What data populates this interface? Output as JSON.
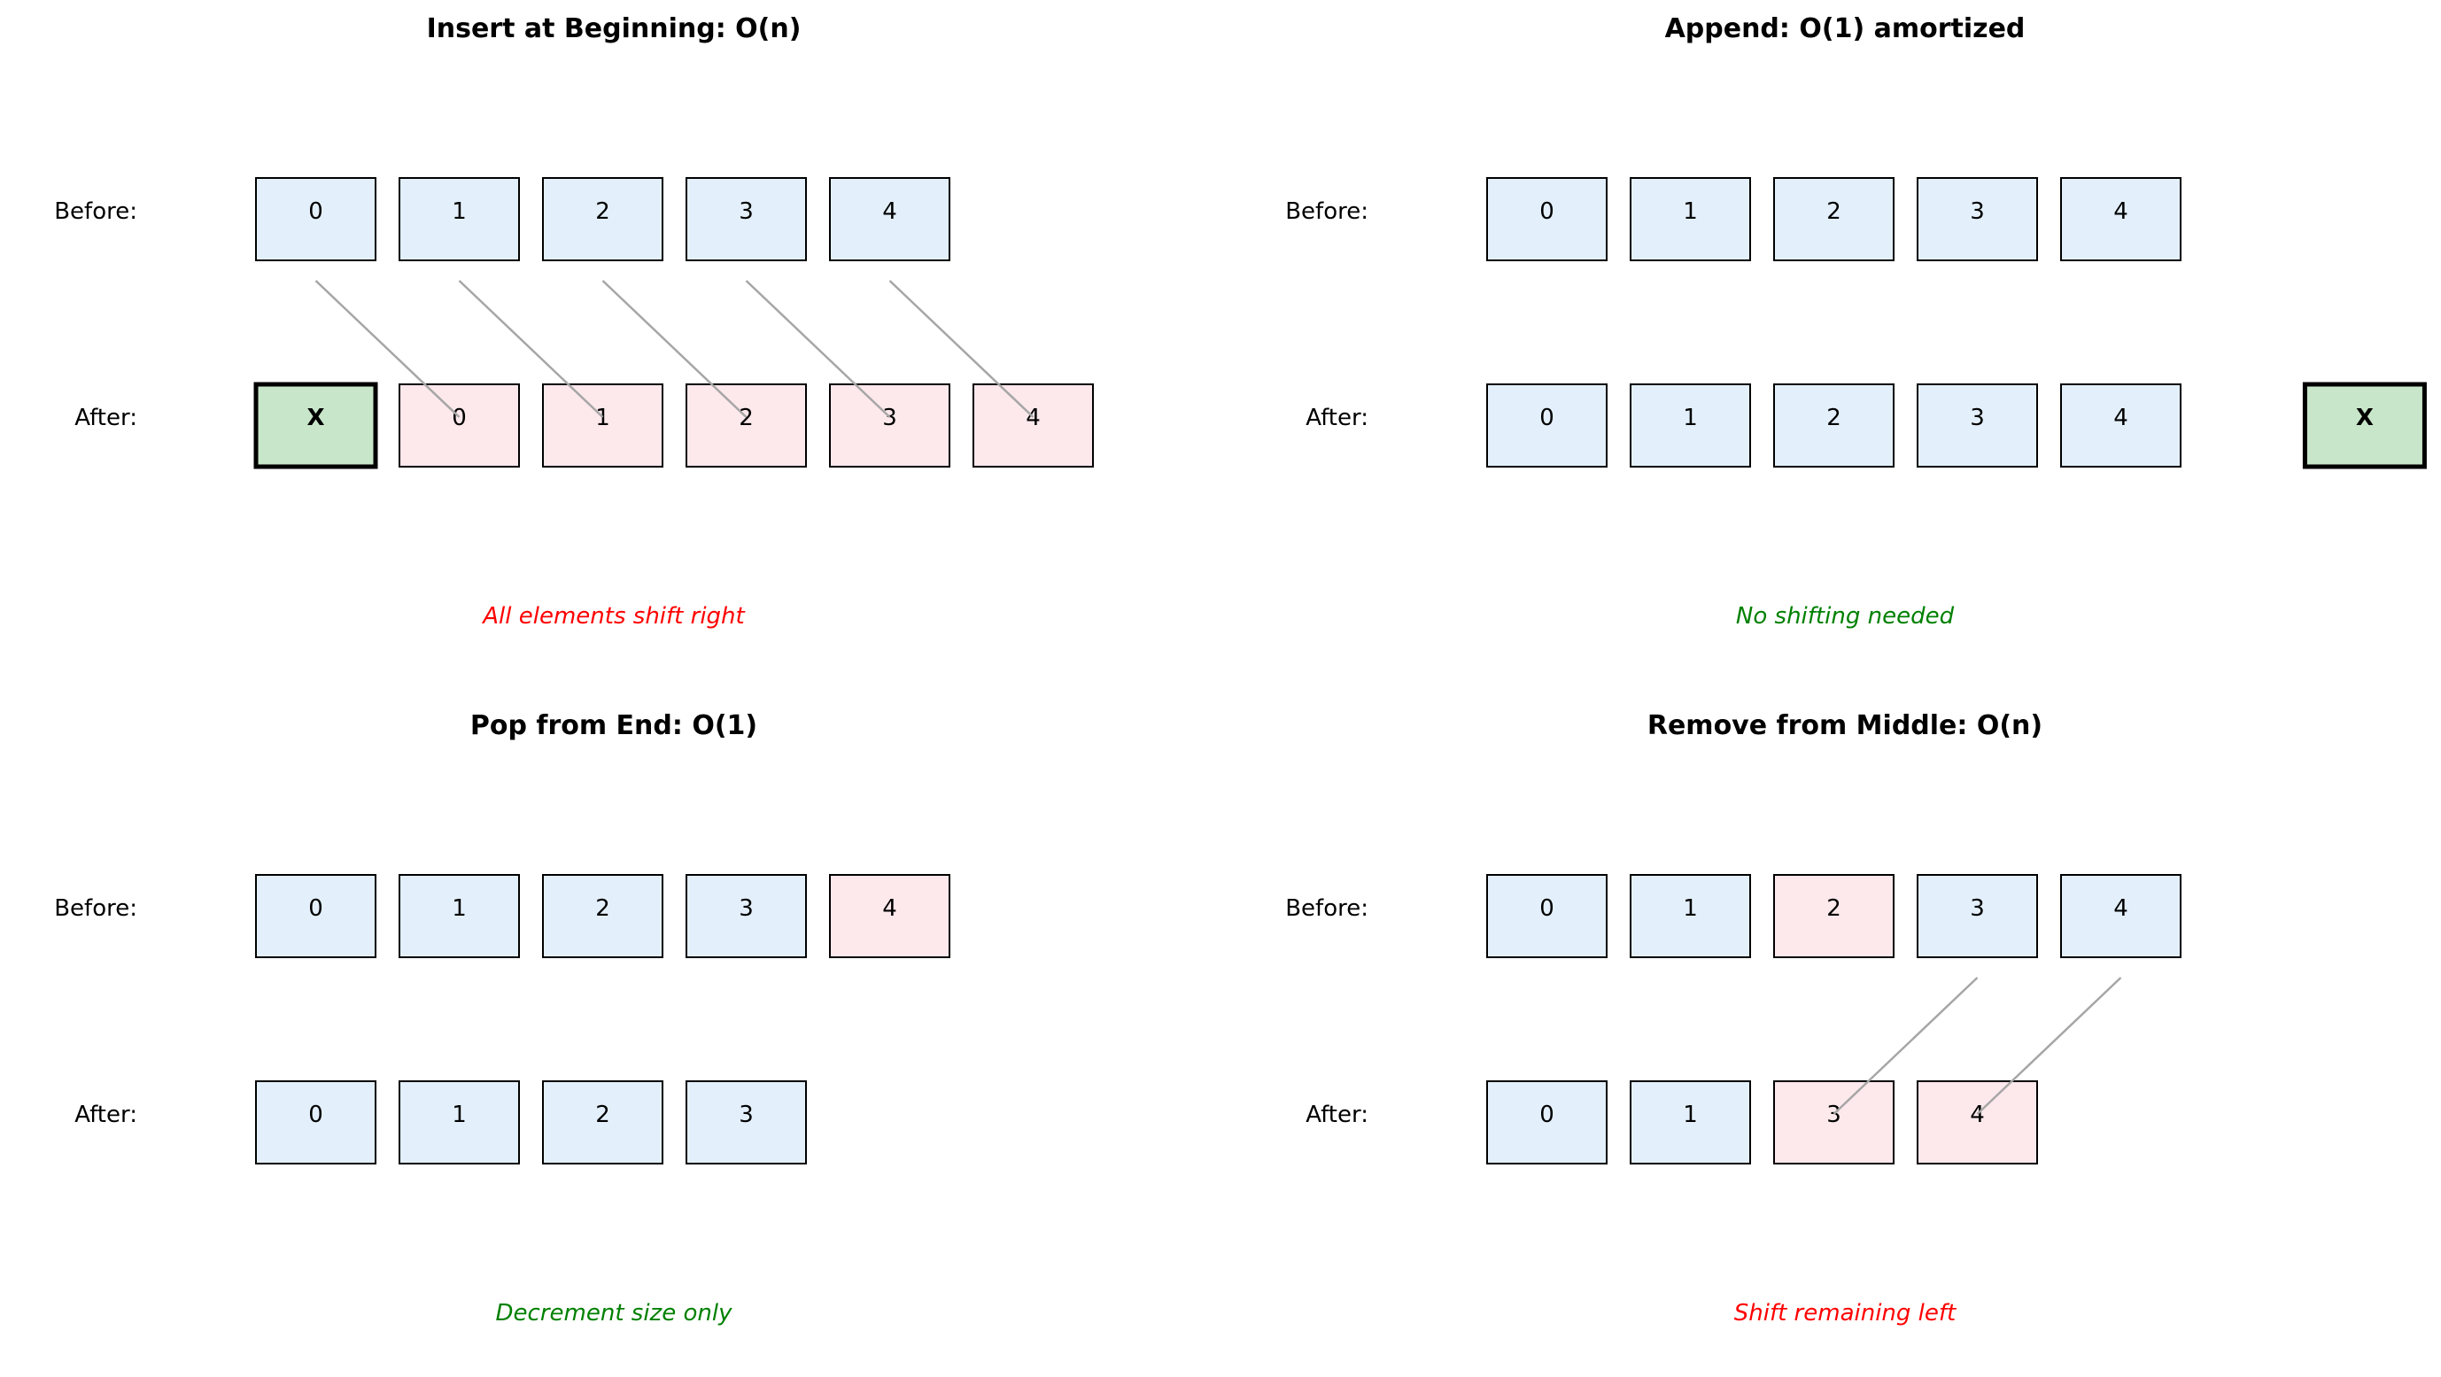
{
  "colors": {
    "normal": "#e3f0fb",
    "shifted": "#fde8ec",
    "inserted": "#c8e6c9",
    "border": "#000000",
    "connector": "#a6a6a6",
    "note_red": "#ff0000",
    "note_green": "#008000"
  },
  "panels": [
    {
      "title": "Insert at Beginning: O(n)",
      "before_label": "Before:",
      "after_label": "After:",
      "before": [
        {
          "label": "0",
          "state": "normal"
        },
        {
          "label": "1",
          "state": "normal"
        },
        {
          "label": "2",
          "state": "normal"
        },
        {
          "label": "3",
          "state": "normal"
        },
        {
          "label": "4",
          "state": "normal"
        }
      ],
      "after": [
        {
          "label": "X",
          "state": "inserted",
          "slot": 0
        },
        {
          "label": "0",
          "state": "shifted",
          "slot": 1
        },
        {
          "label": "1",
          "state": "shifted",
          "slot": 2
        },
        {
          "label": "2",
          "state": "shifted",
          "slot": 3
        },
        {
          "label": "3",
          "state": "shifted",
          "slot": 4
        },
        {
          "label": "4",
          "state": "shifted",
          "slot": 5
        }
      ],
      "moves": [
        [
          0,
          1
        ],
        [
          1,
          2
        ],
        [
          2,
          3
        ],
        [
          3,
          4
        ],
        [
          4,
          5
        ]
      ],
      "note": "All elements shift right",
      "note_color": "red"
    },
    {
      "title": "Append: O(1) amortized",
      "before_label": "Before:",
      "after_label": "After:",
      "before": [
        {
          "label": "0",
          "state": "normal"
        },
        {
          "label": "1",
          "state": "normal"
        },
        {
          "label": "2",
          "state": "normal"
        },
        {
          "label": "3",
          "state": "normal"
        },
        {
          "label": "4",
          "state": "normal"
        }
      ],
      "after": [
        {
          "label": "0",
          "state": "normal",
          "slot": 0
        },
        {
          "label": "1",
          "state": "normal",
          "slot": 1
        },
        {
          "label": "2",
          "state": "normal",
          "slot": 2
        },
        {
          "label": "3",
          "state": "normal",
          "slot": 3
        },
        {
          "label": "4",
          "state": "normal",
          "slot": 4
        },
        {
          "label": "X",
          "state": "inserted",
          "slot": 5.7
        }
      ],
      "moves": [],
      "note": "No shifting needed",
      "note_color": "green"
    },
    {
      "title": "Pop from End: O(1)",
      "before_label": "Before:",
      "after_label": "After:",
      "before": [
        {
          "label": "0",
          "state": "normal"
        },
        {
          "label": "1",
          "state": "normal"
        },
        {
          "label": "2",
          "state": "normal"
        },
        {
          "label": "3",
          "state": "normal"
        },
        {
          "label": "4",
          "state": "shifted"
        }
      ],
      "after": [
        {
          "label": "0",
          "state": "normal",
          "slot": 0
        },
        {
          "label": "1",
          "state": "normal",
          "slot": 1
        },
        {
          "label": "2",
          "state": "normal",
          "slot": 2
        },
        {
          "label": "3",
          "state": "normal",
          "slot": 3
        }
      ],
      "moves": [],
      "note": "Decrement size only",
      "note_color": "green"
    },
    {
      "title": "Remove from Middle: O(n)",
      "before_label": "Before:",
      "after_label": "After:",
      "before": [
        {
          "label": "0",
          "state": "normal"
        },
        {
          "label": "1",
          "state": "normal"
        },
        {
          "label": "2",
          "state": "shifted"
        },
        {
          "label": "3",
          "state": "normal"
        },
        {
          "label": "4",
          "state": "normal"
        }
      ],
      "after": [
        {
          "label": "0",
          "state": "normal",
          "slot": 0
        },
        {
          "label": "1",
          "state": "normal",
          "slot": 1
        },
        {
          "label": "3",
          "state": "shifted",
          "slot": 2
        },
        {
          "label": "4",
          "state": "shifted",
          "slot": 3
        }
      ],
      "moves": [
        [
          3,
          2
        ],
        [
          4,
          3
        ]
      ],
      "note": "Shift remaining left",
      "note_color": "red"
    }
  ]
}
